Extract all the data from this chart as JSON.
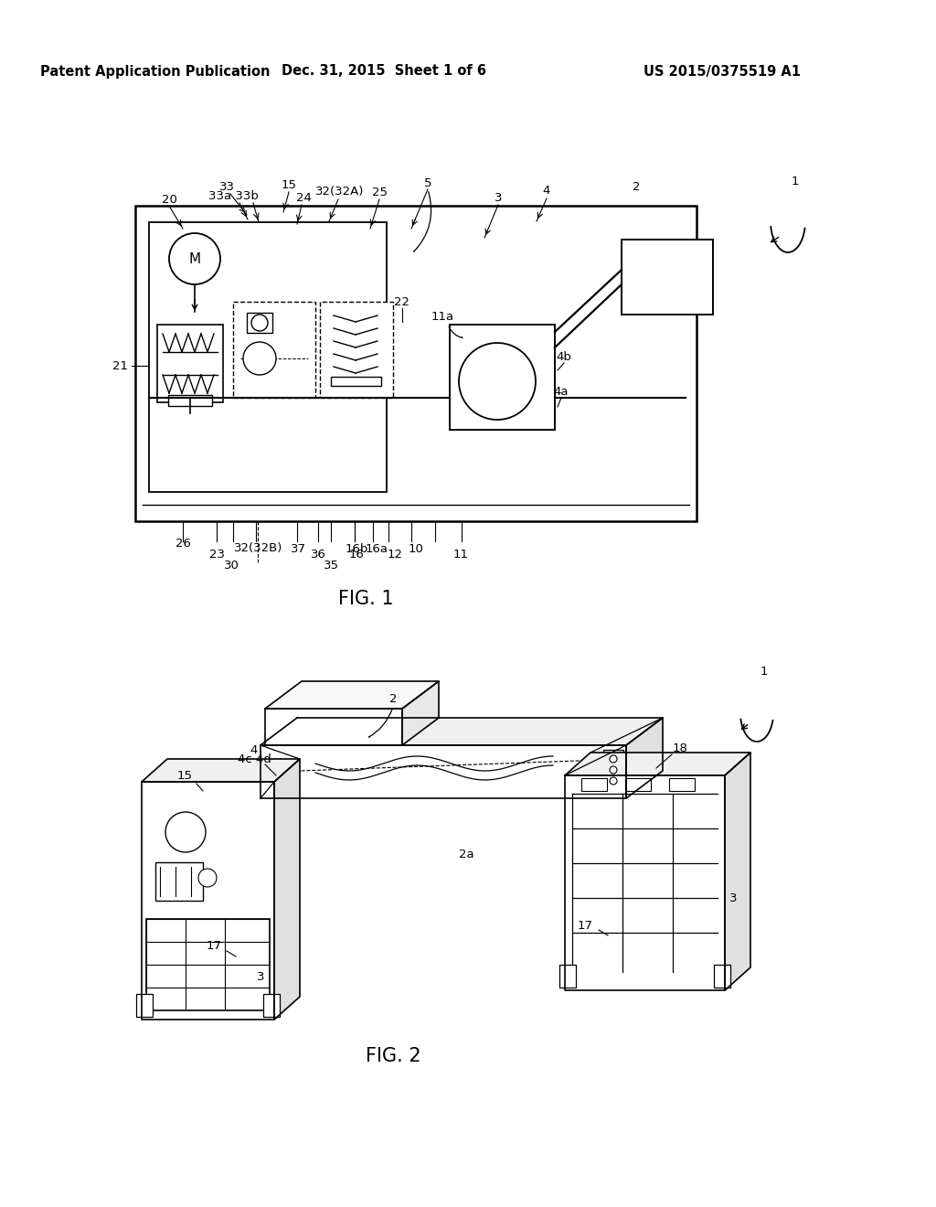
{
  "header_left": "Patent Application Publication",
  "header_mid": "Dec. 31, 2015  Sheet 1 of 6",
  "header_right": "US 2015/0375519 A1",
  "fig1_label": "FIG. 1",
  "fig2_label": "FIG. 2",
  "bg_color": "#ffffff",
  "text_color": "#000000",
  "header_fontsize": 10.5,
  "fig_label_fontsize": 15,
  "ref_fontsize": 9.5
}
